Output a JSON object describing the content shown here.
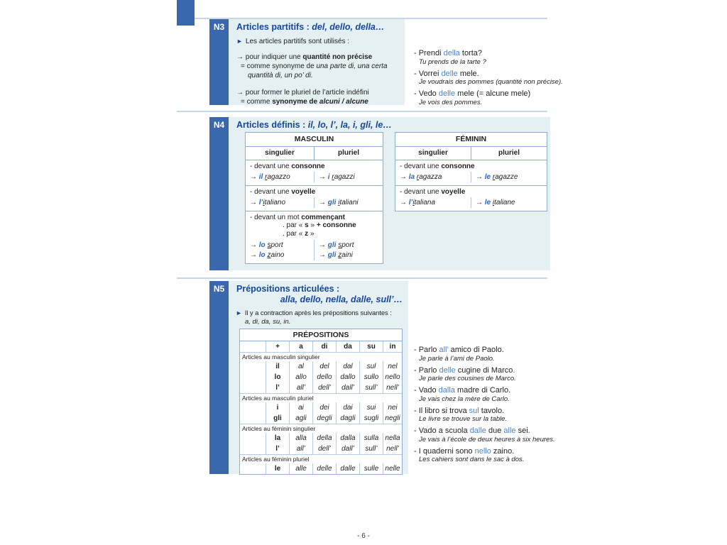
{
  "page": {
    "number": "- 6 -"
  },
  "bullets": {
    "triangle": "►"
  },
  "colors": {
    "tab_blue": "#3a68ae",
    "title_blue": "#17479e",
    "box_teal": "#e4f0f1",
    "example_blue": "#4d83ca",
    "article_blue": "#2d63b4",
    "border_blue": "#8fadd1"
  },
  "n3": {
    "tab": "N3",
    "title": "Articles partitifs : ",
    "title_examples": "del, dello, della…",
    "intro": "Les articles partitifs sont utilisés :",
    "use1_line1": [
      {
        "t": "→ pour indiquer une "
      },
      {
        "t": "quantité non précise",
        "s": 1
      }
    ],
    "use1_line2": [
      {
        "t": "= comme synonyme de "
      },
      {
        "t": "una parte di, una certa quantità di, un po’ di.",
        "i": 1
      }
    ],
    "use2_line1": [
      {
        "t": "→ pour former le pluriel de l’article indéfini"
      }
    ],
    "use2_line2": [
      {
        "t": "= comme "
      },
      {
        "t": "synonyme de ",
        "s": 1
      },
      {
        "t": "alcuni / alcune",
        "s": 1,
        "i": 1
      }
    ],
    "examples": [
      {
        "it": [
          {
            "t": "- Prendi "
          },
          {
            "t": "della",
            "b": 1
          },
          {
            "t": " torta?"
          }
        ],
        "fr": "Tu prends de la tarte ?"
      },
      {
        "it": [
          {
            "t": "- Vorrei "
          },
          {
            "t": "delle",
            "b": 1
          },
          {
            "t": " mele."
          }
        ],
        "fr": "Je voudrais des pommes (quantité non précise)."
      },
      {
        "it": [
          {
            "t": "- Vedo "
          },
          {
            "t": "delle",
            "b": 1
          },
          {
            "t": " mele (= alcune mele)"
          }
        ],
        "fr": "Je vois des pommes."
      }
    ]
  },
  "n4": {
    "tab": "N4",
    "title": "Articles définis : ",
    "title_examples": "il, lo, l’, la, i, gli, le…",
    "masc": {
      "header": "MASCULIN",
      "singular": "singulier",
      "plural": "pluriel",
      "b1_label": [
        {
          "t": "- devant une "
        },
        {
          "t": "consonne",
          "s": 1
        }
      ],
      "b1_left": [
        {
          "t": "→ "
        },
        {
          "t": "il",
          "a": 1,
          "s": 1,
          "i": 1
        },
        {
          "t": " "
        },
        {
          "t": "r",
          "i": 1,
          "u": 1
        },
        {
          "t": "agazzo",
          "i": 1
        }
      ],
      "b1_right": [
        {
          "t": "→ "
        },
        {
          "t": "i",
          "a": 1,
          "s": 1,
          "i": 1
        },
        {
          "t": " "
        },
        {
          "t": "r",
          "i": 1,
          "u": 1
        },
        {
          "t": "agazzi",
          "i": 1
        }
      ],
      "b2_label": [
        {
          "t": "- devant une "
        },
        {
          "t": "voyelle",
          "s": 1
        }
      ],
      "b2_left": [
        {
          "t": "→ "
        },
        {
          "t": "l’",
          "a": 1,
          "s": 1,
          "i": 1
        },
        {
          "t": "i",
          "i": 1,
          "u": 1
        },
        {
          "t": "taliano",
          "i": 1
        }
      ],
      "b2_right": [
        {
          "t": "→ "
        },
        {
          "t": "gli",
          "a": 1,
          "s": 1,
          "i": 1
        },
        {
          "t": " "
        },
        {
          "t": "i",
          "i": 1,
          "u": 1
        },
        {
          "t": "taliani",
          "i": 1
        }
      ],
      "b3_label": [
        {
          "t": "- devant un mot "
        },
        {
          "t": "commençant",
          "s": 1
        }
      ],
      "b3_sub1": [
        {
          "t": ". par « "
        },
        {
          "t": "s",
          "s": 1
        },
        {
          "t": " » "
        },
        {
          "t": "+ consonne",
          "s": 1
        }
      ],
      "b3_sub2": [
        {
          "t": ". par « "
        },
        {
          "t": "z",
          "s": 1
        },
        {
          "t": " »"
        }
      ],
      "b3_left1": [
        {
          "t": "→ "
        },
        {
          "t": "lo",
          "a": 1,
          "s": 1,
          "i": 1
        },
        {
          "t": " "
        },
        {
          "t": "s",
          "i": 1,
          "u": 1
        },
        {
          "t": "port",
          "i": 1
        }
      ],
      "b3_left2": [
        {
          "t": "→ "
        },
        {
          "t": "lo",
          "a": 1,
          "s": 1,
          "i": 1
        },
        {
          "t": " "
        },
        {
          "t": "z",
          "i": 1,
          "u": 1
        },
        {
          "t": "aino",
          "i": 1
        }
      ],
      "b3_right1": [
        {
          "t": "→ "
        },
        {
          "t": "gli",
          "a": 1,
          "s": 1,
          "i": 1
        },
        {
          "t": " "
        },
        {
          "t": "s",
          "i": 1,
          "u": 1
        },
        {
          "t": "port",
          "i": 1
        }
      ],
      "b3_right2": [
        {
          "t": "→ "
        },
        {
          "t": "gli",
          "a": 1,
          "s": 1,
          "i": 1
        },
        {
          "t": " "
        },
        {
          "t": "z",
          "i": 1,
          "u": 1
        },
        {
          "t": "aini",
          "i": 1
        }
      ]
    },
    "fem": {
      "header": "FÉMININ",
      "singular": "singulier",
      "plural": "pluriel",
      "b1_label": [
        {
          "t": "- devant une "
        },
        {
          "t": "consonne",
          "s": 1
        }
      ],
      "b1_left": [
        {
          "t": "→ "
        },
        {
          "t": "la",
          "a": 1,
          "s": 1,
          "i": 1
        },
        {
          "t": " "
        },
        {
          "t": "r",
          "i": 1,
          "u": 1
        },
        {
          "t": "agazza",
          "i": 1
        }
      ],
      "b1_right": [
        {
          "t": "→ "
        },
        {
          "t": "le",
          "a": 1,
          "s": 1,
          "i": 1
        },
        {
          "t": " "
        },
        {
          "t": "r",
          "i": 1,
          "u": 1
        },
        {
          "t": "agazze",
          "i": 1
        }
      ],
      "b2_label": [
        {
          "t": "- devant une "
        },
        {
          "t": "voyelle",
          "s": 1
        }
      ],
      "b2_left": [
        {
          "t": "→ "
        },
        {
          "t": "l’",
          "a": 1,
          "s": 1,
          "i": 1
        },
        {
          "t": "i",
          "i": 1,
          "u": 1
        },
        {
          "t": "taliana",
          "i": 1
        }
      ],
      "b2_right": [
        {
          "t": "→ "
        },
        {
          "t": "le",
          "a": 1,
          "s": 1,
          "i": 1
        },
        {
          "t": " "
        },
        {
          "t": "i",
          "i": 1,
          "u": 1
        },
        {
          "t": "taliane",
          "i": 1
        }
      ]
    }
  },
  "n5": {
    "tab": "N5",
    "title_line1": "Prépositions articulées :",
    "title_line2": "alla, dello, nella, dalle, sull’…",
    "intro": "Il y a contraction après les prépositions suivantes :",
    "intro_list": "a, di, da, su, in.",
    "table": {
      "title": "PRÉPOSITIONS",
      "col_headers": [
        "",
        "+",
        "a",
        "di",
        "da",
        "su",
        "in"
      ],
      "groups": [
        {
          "label": "Articles au masculin singulier",
          "rows": [
            [
              "il",
              "al",
              "del",
              "dal",
              "sul",
              "nel"
            ],
            [
              "lo",
              "allo",
              "dello",
              "dallo",
              "sullo",
              "nello"
            ],
            [
              "l’",
              "all’",
              "dell’",
              "dall’",
              "sull’",
              "nell’"
            ]
          ]
        },
        {
          "label": "Articles au masculin pluriel",
          "rows": [
            [
              "i",
              "ai",
              "dei",
              "dai",
              "sui",
              "nei"
            ],
            [
              "gli",
              "agli",
              "degli",
              "dagli",
              "sugli",
              "negli"
            ]
          ]
        },
        {
          "label": "Articles au féminin singulier",
          "rows": [
            [
              "la",
              "alla",
              "della",
              "dalla",
              "sulla",
              "nella"
            ],
            [
              "l’",
              "all’",
              "dell’",
              "dall’",
              "sull’",
              "nell’"
            ]
          ]
        },
        {
          "label": "Articles au féminin pluriel",
          "rows": [
            [
              "le",
              "alle",
              "delle",
              "dalle",
              "sulle",
              "nelle"
            ]
          ]
        }
      ]
    },
    "examples": [
      {
        "it": [
          {
            "t": "- Parlo "
          },
          {
            "t": "all’",
            "b": 1
          },
          {
            "t": " amico di Paolo."
          }
        ],
        "fr": "Je parle à l’ami de Paolo."
      },
      {
        "it": [
          {
            "t": "- Parlo "
          },
          {
            "t": "delle",
            "b": 1
          },
          {
            "t": " cugine di Marco."
          }
        ],
        "fr": "Je parle des cousines de Marco."
      },
      {
        "it": [
          {
            "t": "- Vado "
          },
          {
            "t": "dalla",
            "b": 1
          },
          {
            "t": " madre di Carlo."
          }
        ],
        "fr": "Je vais chez la mère de Carlo."
      },
      {
        "it": [
          {
            "t": "- Il libro si trova "
          },
          {
            "t": "sul",
            "b": 1
          },
          {
            "t": " tavolo."
          }
        ],
        "fr": "Le livre se trouve sur la table."
      },
      {
        "it": [
          {
            "t": "- Vado a scuola "
          },
          {
            "t": "dalle",
            "b": 1
          },
          {
            "t": " due "
          },
          {
            "t": "alle",
            "b": 1
          },
          {
            "t": " sei."
          }
        ],
        "fr": "Je vais à l’école de deux heures à six heures."
      },
      {
        "it": [
          {
            "t": "- I quaderni sono "
          },
          {
            "t": "nello",
            "b": 1
          },
          {
            "t": " zaino."
          }
        ],
        "fr": "Les cahiers sont dans le sac à dos."
      }
    ]
  }
}
